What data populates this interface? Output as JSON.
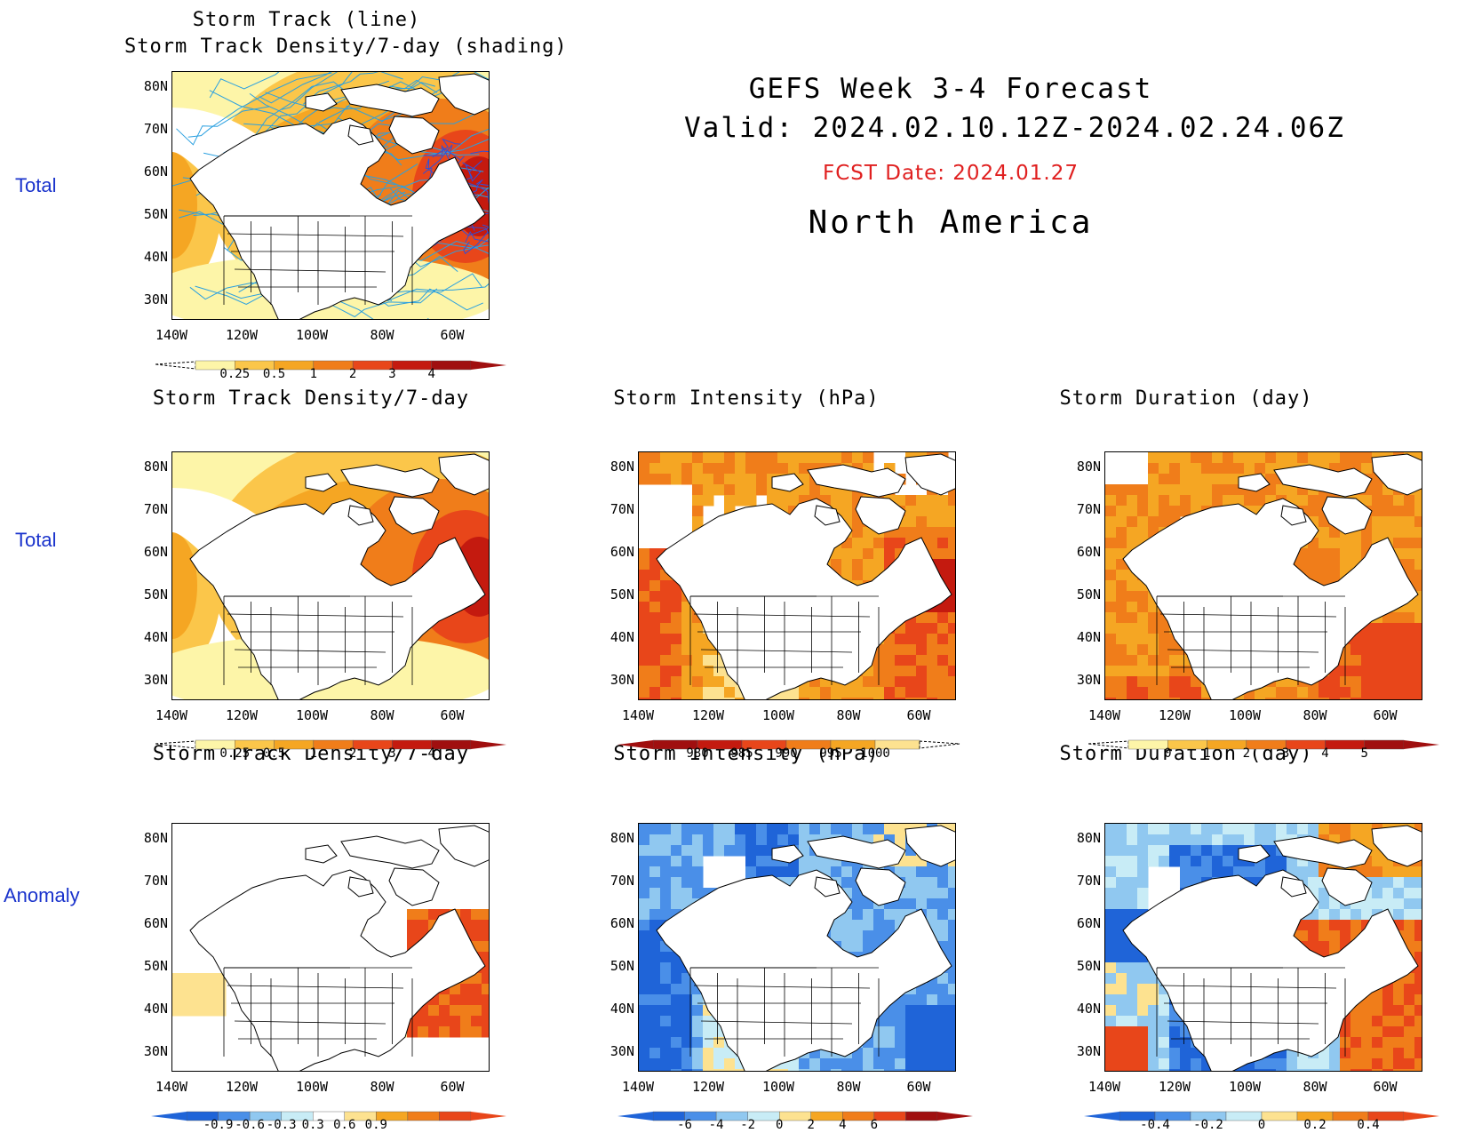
{
  "header": {
    "title": "GEFS Week 3-4 Forecast",
    "valid": "Valid: 2024.02.10.12Z-2024.02.24.06Z",
    "fcst_date": "FCST Date: 2024.01.27",
    "region": "North America"
  },
  "row_labels": {
    "row1": "Total",
    "row2": "Total",
    "row3": "Anomaly"
  },
  "panels": {
    "p1": {
      "title_line1": "Storm Track (line)",
      "title_line2": "Storm Track Density/7-day (shading)"
    },
    "p2": {
      "title": "Storm Track Density/7-day"
    },
    "p3": {
      "title": "Storm Intensity (hPa)"
    },
    "p4": {
      "title": "Storm Duration (day)"
    },
    "p5": {
      "title": "Storm Track Density/7-day"
    },
    "p6": {
      "title": "Storm Intensity (hPa)"
    },
    "p7": {
      "title": "Storm Duration (day)"
    }
  },
  "axes": {
    "lat_labels": [
      "80N",
      "70N",
      "60N",
      "50N",
      "40N",
      "30N"
    ],
    "lon_labels": [
      "140W",
      "120W",
      "100W",
      "80W",
      "60W"
    ]
  },
  "colorbars": {
    "density": {
      "ticks": [
        "0.25",
        "0.5",
        "1",
        "2",
        "3",
        "4"
      ],
      "colors": [
        "#fdf5a8",
        "#fbc64a",
        "#f5a623",
        "#f07d1a",
        "#e8461a",
        "#c41a0f",
        "#a00f0f"
      ]
    },
    "intensity_total": {
      "ticks": [
        "980",
        "985",
        "990",
        "995",
        "1000"
      ],
      "colors": [
        "#a00f0f",
        "#c41a0f",
        "#e8461a",
        "#f07d1a",
        "#f5a623",
        "#fde290"
      ]
    },
    "duration_total": {
      "ticks": [
        "0",
        "1",
        "2",
        "3",
        "4",
        "5"
      ],
      "colors": [
        "#fdf5a8",
        "#fbc64a",
        "#f5a623",
        "#f07d1a",
        "#e8461a",
        "#c41a0f",
        "#a00f0f"
      ]
    },
    "density_anom": {
      "ticks": [
        "-0.9",
        "-0.6",
        "-0.3",
        "0.3",
        "0.6",
        "0.9"
      ],
      "colors": [
        "#1f64d8",
        "#4a8fe8",
        "#90c8f0",
        "#c8ecf6",
        "#ffffff",
        "#fde290",
        "#f5a623",
        "#f07d1a",
        "#e8461a"
      ]
    },
    "intensity_anom": {
      "ticks": [
        "-6",
        "-4",
        "-2",
        "0",
        "2",
        "4",
        "6"
      ],
      "colors": [
        "#1f64d8",
        "#4a8fe8",
        "#90c8f0",
        "#c8ecf6",
        "#fde290",
        "#f5a623",
        "#f07d1a",
        "#e8461a",
        "#a00f0f"
      ]
    },
    "duration_anom": {
      "ticks": [
        "-0.4",
        "-0.2",
        "0",
        "0.2",
        "0.4"
      ],
      "colors": [
        "#1f64d8",
        "#4a8fe8",
        "#90c8f0",
        "#c8ecf6",
        "#fde290",
        "#f5a623",
        "#f07d1a",
        "#e8461a"
      ]
    }
  }
}
